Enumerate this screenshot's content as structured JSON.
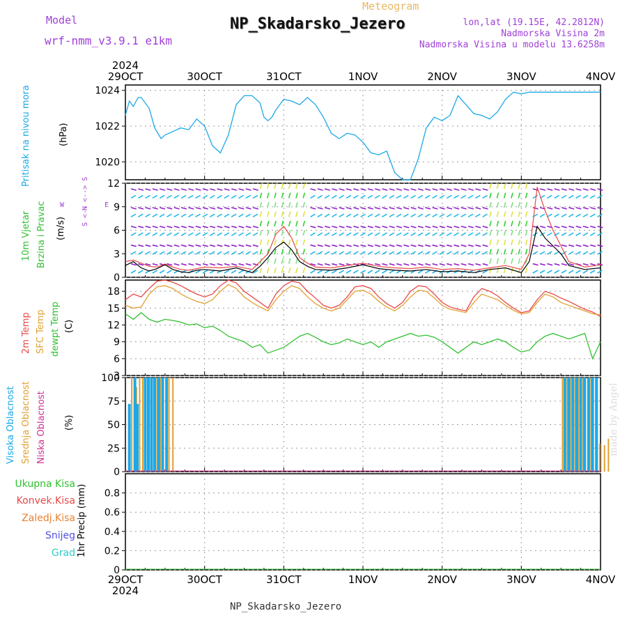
{
  "header": {
    "model_label": "Model",
    "model_name": "wrf-nmm_v3.9.1 e1km",
    "meteogram_label": "Meteogram",
    "station_title": "NP_Skadarsko_Jezero",
    "coords": "lon,lat (19.15E, 42.2812N)",
    "elevation": "Nadmorska Visina 2m",
    "model_elevation": "Nadmorska Visina u modelu 13.6258m"
  },
  "footer": {
    "station": "NP_Skadarsko_Jezero",
    "credit": "made by Angel"
  },
  "colors": {
    "pressure": "#1ba8e8",
    "temp2m": "#e84848",
    "sfc": "#e0a030",
    "dewpt": "#30c030",
    "high_cloud": "#1ba8e8",
    "mid_cloud": "#e0a030",
    "low_cloud": "#d03090",
    "axis": "#000000",
    "grid": "#999999"
  },
  "chart_data": [
    {
      "type": "line",
      "panel": "pressure",
      "year_top": "2024",
      "x_tick_labels": [
        "29OCT",
        "30OCT",
        "31OCT",
        "1NOV",
        "2NOV",
        "3NOV",
        "4NOV"
      ],
      "y_label_colored": "Pritisak na nivou mora",
      "y_label_unit": "(hPa)",
      "ylim": [
        1019,
        1024.3
      ],
      "y_ticks": [
        1020,
        1022,
        1024
      ],
      "x_days": [
        0,
        0.05,
        0.1,
        0.16,
        0.2,
        0.3,
        0.37,
        0.45,
        0.5,
        0.55,
        0.6,
        0.7,
        0.8,
        0.9,
        1.0,
        1.1,
        1.2,
        1.3,
        1.4,
        1.5,
        1.6,
        1.7,
        1.75,
        1.8,
        1.85,
        1.9,
        2.0,
        2.1,
        2.2,
        2.3,
        2.4,
        2.5,
        2.6,
        2.7,
        2.8,
        2.9,
        3.0,
        3.1,
        3.2,
        3.3,
        3.4,
        3.5,
        3.6,
        3.7,
        3.8,
        3.9,
        4.0,
        4.1,
        4.2,
        4.3,
        4.4,
        4.5,
        4.6,
        4.7,
        4.8,
        4.9,
        5.0,
        5.1,
        5.2,
        5.3,
        5.4,
        5.5,
        5.6,
        5.7,
        5.8,
        5.9,
        6.0
      ],
      "series": [
        {
          "values": [
            1022.6,
            1023.4,
            1023.1,
            1023.6,
            1023.6,
            1023.0,
            1021.9,
            1021.3,
            1021.5,
            1021.6,
            1021.7,
            1021.9,
            1021.8,
            1022.4,
            1022.0,
            1020.9,
            1020.5,
            1021.5,
            1023.2,
            1023.7,
            1023.7,
            1023.3,
            1022.5,
            1022.3,
            1022.5,
            1022.9,
            1023.5,
            1023.4,
            1023.2,
            1023.6,
            1023.2,
            1022.5,
            1021.6,
            1021.3,
            1021.6,
            1021.5,
            1021.1,
            1020.5,
            1020.4,
            1020.6,
            1019.4,
            1019.0,
            1018.8,
            1020.2,
            1021.9,
            1022.5,
            1022.3,
            1022.6,
            1023.7,
            1023.2,
            1022.7,
            1022.6,
            1022.4,
            1022.8,
            1023.5,
            1023.9,
            1023.8,
            1023.9,
            1023.9,
            1023.9,
            1023.9,
            1023.9,
            1023.9,
            1023.9,
            1023.9,
            1023.9,
            1023.9
          ]
        }
      ]
    },
    {
      "type": "line",
      "panel": "wind",
      "y_label_colored_1": "10m Vjetar",
      "y_label_colored_2": "Brzina i Pravac",
      "y_label_unit": "(m/s)",
      "compass_ns": "N <--> S",
      "compass_w": "W",
      "compass_e": "E",
      "compass_bottom": "S <--",
      "ylim": [
        0,
        12
      ],
      "y_ticks": [
        0,
        3,
        6,
        9,
        12
      ],
      "x_days": [
        0,
        0.1,
        0.2,
        0.3,
        0.4,
        0.5,
        0.6,
        0.7,
        0.8,
        0.9,
        1.0,
        1.2,
        1.4,
        1.6,
        1.7,
        1.8,
        1.9,
        2.0,
        2.1,
        2.2,
        2.3,
        2.4,
        2.6,
        2.8,
        3.0,
        3.2,
        3.4,
        3.6,
        3.8,
        4.0,
        4.2,
        4.4,
        4.6,
        4.8,
        5.0,
        5.1,
        5.2,
        5.3,
        5.4,
        5.5,
        5.6,
        5.8,
        6.0
      ],
      "series": [
        {
          "values": [
            1.5,
            2.0,
            1.2,
            0.8,
            1.1,
            1.6,
            1.0,
            0.7,
            0.6,
            0.9,
            1.0,
            0.8,
            1.2,
            0.6,
            1.4,
            2.5,
            3.8,
            4.5,
            3.5,
            2.0,
            1.4,
            1.0,
            0.9,
            1.2,
            1.6,
            1.1,
            0.9,
            0.8,
            1.0,
            0.7,
            0.8,
            0.6,
            1.0,
            1.2,
            0.6,
            2.0,
            6.5,
            5.0,
            4.0,
            3.0,
            1.5,
            1.0,
            1.2
          ]
        }
      ],
      "series_2": [
        {
          "values": [
            2.0,
            2.2,
            1.8,
            1.4,
            1.3,
            1.7,
            1.3,
            1.0,
            0.9,
            1.1,
            1.3,
            1.2,
            1.4,
            1.0,
            2.0,
            3.0,
            5.5,
            6.5,
            5.0,
            2.5,
            1.8,
            1.3,
            1.2,
            1.5,
            1.8,
            1.4,
            1.2,
            1.1,
            1.3,
            1.0,
            1.1,
            0.9,
            1.2,
            1.5,
            1.0,
            3.0,
            11.5,
            8.5,
            6.0,
            4.0,
            2.0,
            1.3,
            1.6
          ]
        }
      ]
    },
    {
      "type": "line",
      "panel": "temperature",
      "y_label_2m": "2m Temp",
      "y_label_sfc": "SFC Temp",
      "y_label_dewpt": "dewpt Temp",
      "y_label_unit": "(C)",
      "ylim": [
        3,
        20
      ],
      "y_ticks": [
        3,
        6,
        9,
        12,
        15,
        18
      ],
      "x_days": [
        0,
        0.1,
        0.2,
        0.3,
        0.4,
        0.5,
        0.6,
        0.7,
        0.8,
        0.9,
        1.0,
        1.1,
        1.2,
        1.3,
        1.4,
        1.5,
        1.6,
        1.7,
        1.8,
        1.9,
        2.0,
        2.1,
        2.2,
        2.3,
        2.4,
        2.5,
        2.6,
        2.7,
        2.8,
        2.9,
        3.0,
        3.1,
        3.2,
        3.3,
        3.4,
        3.5,
        3.6,
        3.7,
        3.8,
        3.9,
        4.0,
        4.1,
        4.2,
        4.3,
        4.4,
        4.5,
        4.6,
        4.7,
        4.8,
        4.9,
        5.0,
        5.1,
        5.2,
        5.3,
        5.4,
        5.5,
        5.6,
        5.7,
        5.8,
        5.9,
        6.0
      ],
      "series": [
        {
          "name": "2m Temp",
          "values": [
            16.5,
            17.5,
            17.0,
            18.5,
            19.8,
            20.0,
            19.6,
            19.0,
            18.2,
            17.5,
            17.0,
            17.5,
            19.0,
            20.0,
            19.5,
            18.0,
            17.0,
            16.0,
            15.0,
            17.5,
            19.0,
            19.8,
            19.5,
            18.0,
            16.8,
            15.5,
            15.0,
            15.5,
            17.0,
            18.8,
            19.0,
            18.5,
            17.0,
            15.8,
            15.0,
            16.0,
            18.0,
            19.0,
            18.8,
            17.5,
            16.0,
            15.2,
            14.8,
            14.5,
            17.0,
            18.5,
            18.0,
            17.2,
            16.0,
            15.0,
            14.2,
            14.5,
            16.5,
            18.0,
            17.5,
            16.8,
            16.2,
            15.5,
            14.8,
            14.3,
            13.5
          ]
        },
        {
          "name": "SFC Temp",
          "values": [
            15.5,
            15.0,
            15.2,
            17.5,
            18.8,
            19.0,
            18.5,
            17.5,
            16.8,
            16.2,
            15.8,
            16.5,
            18.0,
            19.2,
            18.5,
            17.0,
            16.0,
            15.2,
            14.5,
            16.5,
            18.0,
            19.0,
            18.5,
            17.0,
            15.8,
            15.0,
            14.5,
            15.0,
            16.5,
            18.0,
            18.2,
            17.5,
            16.2,
            15.2,
            14.5,
            15.5,
            17.0,
            18.2,
            18.0,
            16.8,
            15.5,
            14.8,
            14.5,
            14.2,
            16.0,
            17.5,
            17.0,
            16.5,
            15.5,
            14.6,
            14.0,
            14.2,
            16.0,
            17.5,
            17.0,
            16.0,
            15.5,
            15.0,
            14.5,
            14.0,
            13.8
          ]
        },
        {
          "name": "dewpt Temp",
          "values": [
            14.0,
            13.0,
            14.2,
            13.0,
            12.5,
            13.0,
            12.8,
            12.5,
            12.0,
            12.2,
            11.5,
            11.8,
            11.0,
            10.0,
            9.5,
            9.0,
            8.0,
            8.5,
            7.0,
            7.5,
            8.0,
            9.0,
            10.0,
            10.5,
            9.8,
            9.0,
            8.5,
            8.8,
            9.5,
            9.0,
            8.5,
            9.0,
            8.0,
            9.0,
            9.5,
            10.0,
            10.5,
            10.0,
            10.2,
            9.8,
            9.0,
            8.0,
            7.0,
            8.0,
            9.0,
            8.5,
            9.0,
            9.5,
            9.0,
            8.0,
            7.2,
            7.5,
            9.0,
            10.0,
            10.5,
            10.0,
            9.5,
            10.0,
            10.5,
            6.0,
            9.0
          ]
        }
      ]
    },
    {
      "type": "bar",
      "panel": "clouds",
      "y_label_high": "Visoka Oblacnost",
      "y_label_mid": "Srednja Oblacnost",
      "y_label_low": "Niska Oblacnost",
      "y_label_unit": "(%)",
      "ylim": [
        0,
        100
      ],
      "y_ticks": [
        0,
        25,
        50,
        75,
        100
      ],
      "high_cloud": {
        "x_days": [
          0.05,
          0.12,
          0.15,
          0.25,
          0.29,
          0.33,
          0.37,
          0.42,
          0.47,
          0.52,
          5.55,
          5.6,
          5.65,
          5.7,
          5.75,
          5.8,
          5.85,
          5.9,
          5.95
        ],
        "values": [
          72,
          100,
          72,
          100,
          100,
          100,
          100,
          100,
          100,
          100,
          100,
          100,
          100,
          100,
          100,
          100,
          100,
          100,
          100
        ]
      },
      "mid_cloud": {
        "x_days": [
          0.08,
          0.14,
          0.18,
          0.22,
          0.26,
          0.3,
          0.36,
          0.4,
          0.44,
          0.48,
          0.55,
          0.6,
          5.52,
          5.58,
          5.62,
          5.68,
          5.72,
          5.78,
          5.84,
          5.88,
          5.94,
          5.99,
          6.05,
          6.1
        ],
        "values": [
          100,
          90,
          100,
          100,
          100,
          100,
          100,
          100,
          100,
          100,
          100,
          100,
          100,
          100,
          100,
          100,
          100,
          100,
          100,
          100,
          100,
          30,
          28,
          35
        ]
      },
      "low_cloud": {
        "x_days": [
          0.0,
          6.0
        ],
        "values": [
          0,
          0
        ]
      }
    },
    {
      "type": "line",
      "panel": "precipitation",
      "x_tick_labels": [
        "29OCT",
        "30OCT",
        "31OCT",
        "1NOV",
        "2NOV",
        "3NOV",
        "4NOV"
      ],
      "year_bottom": "2024",
      "legend": [
        "Ukupna Kisa",
        "Konvek.Kisa",
        "Zaledj.Kisa",
        "Snijeg",
        "Grad"
      ],
      "legend_colors": [
        "#30c030",
        "#e84848",
        "#e88030",
        "#5050e0",
        "#30c8c8"
      ],
      "y_label": "1hr Precip (mm)",
      "ylim": [
        0,
        1.0
      ],
      "y_ticks": [
        0,
        0.2,
        0.4,
        0.6,
        0.8
      ],
      "series": [
        {
          "name": "Ukupna Kisa",
          "values": [
            0,
            0,
            0,
            0,
            0,
            0,
            0
          ]
        }
      ]
    }
  ]
}
